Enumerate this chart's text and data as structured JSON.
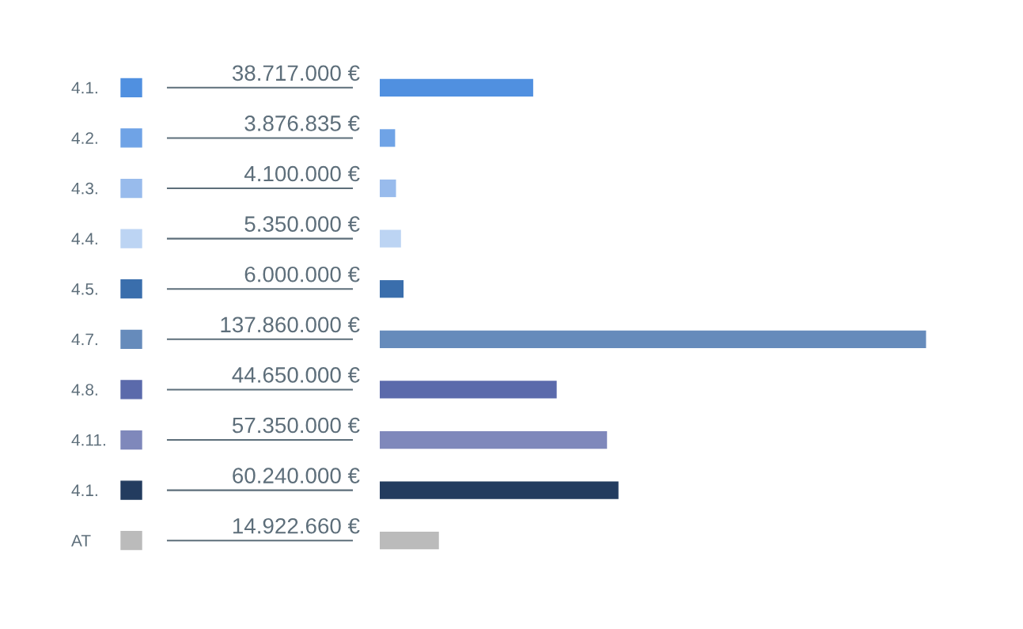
{
  "chart_data": {
    "type": "bar",
    "orientation": "horizontal",
    "categories": [
      "4.1.",
      "4.2.",
      "4.3.",
      "4.4.",
      "4.5.",
      "4.7.",
      "4.8.",
      "4.11.",
      "4.1.",
      "AT"
    ],
    "values": [
      38717000,
      3876835,
      4100000,
      5350000,
      6000000,
      137860000,
      44650000,
      57350000,
      60240000,
      14922660
    ],
    "value_labels": [
      "38.717.000 €",
      "3.876.835 €",
      "4.100.000 €",
      "5.350.000 €",
      "6.000.000 €",
      "137.860.000 €",
      "44.650.000 €",
      "57.350.000 €",
      "60.240.000 €",
      "14.922.660 €"
    ],
    "colors": [
      "#5090e0",
      "#6fa3e6",
      "#98bbec",
      "#bcd4f3",
      "#3a6eac",
      "#668bbb",
      "#5b6aab",
      "#7f88bb",
      "#233c5f",
      "#bbbbbb"
    ],
    "legend": false
  }
}
